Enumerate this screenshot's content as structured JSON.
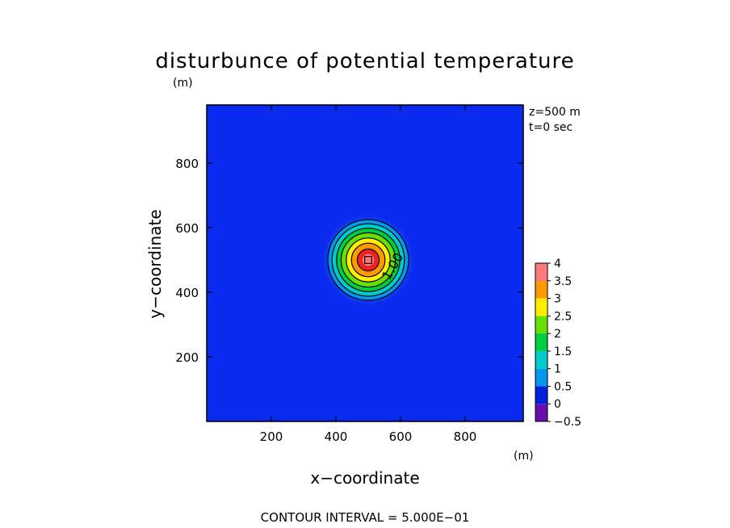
{
  "chart_data": {
    "type": "heatmap",
    "title": "disturbunce of potential temperature",
    "xlabel": "x−coordinate",
    "ylabel": "y−coordinate",
    "x_unit": "(m)",
    "y_unit": "(m)",
    "xlim": [
      0,
      980
    ],
    "ylim": [
      0,
      980
    ],
    "x_ticks": [
      200,
      400,
      600,
      800
    ],
    "y_ticks": [
      200,
      400,
      600,
      800
    ],
    "annotation_lines": [
      "z=500 m",
      "t=0 sec"
    ],
    "footer": "CONTOUR INTERVAL = 5.000E−01",
    "center": [
      500,
      500
    ],
    "max_value": 4,
    "contour_levels": [
      0.5,
      1.0,
      1.5,
      2.0,
      2.5,
      3.0,
      3.5,
      4.0
    ],
    "contour_radii": [
      125,
      112,
      98,
      84,
      68,
      52,
      34,
      18
    ],
    "contour_label": {
      "text": "1.00",
      "x": 565,
      "y": 435
    },
    "colorbar": {
      "levels": [
        -0.5,
        0,
        0.5,
        1,
        1.5,
        2,
        2.5,
        3,
        3.5,
        4
      ],
      "labels": [
        "4",
        "3.5",
        "3",
        "2.5",
        "2",
        "1.5",
        "1",
        "0.5",
        "0",
        "−0.5"
      ],
      "colors": [
        "#6a0dad",
        "#0022dd",
        "#0099ee",
        "#00cccc",
        "#00cc44",
        "#66e000",
        "#ffee00",
        "#ff9900",
        "#ee2222"
      ],
      "top_color": "#ff7a7a"
    },
    "background_color": "#0a2af0"
  }
}
